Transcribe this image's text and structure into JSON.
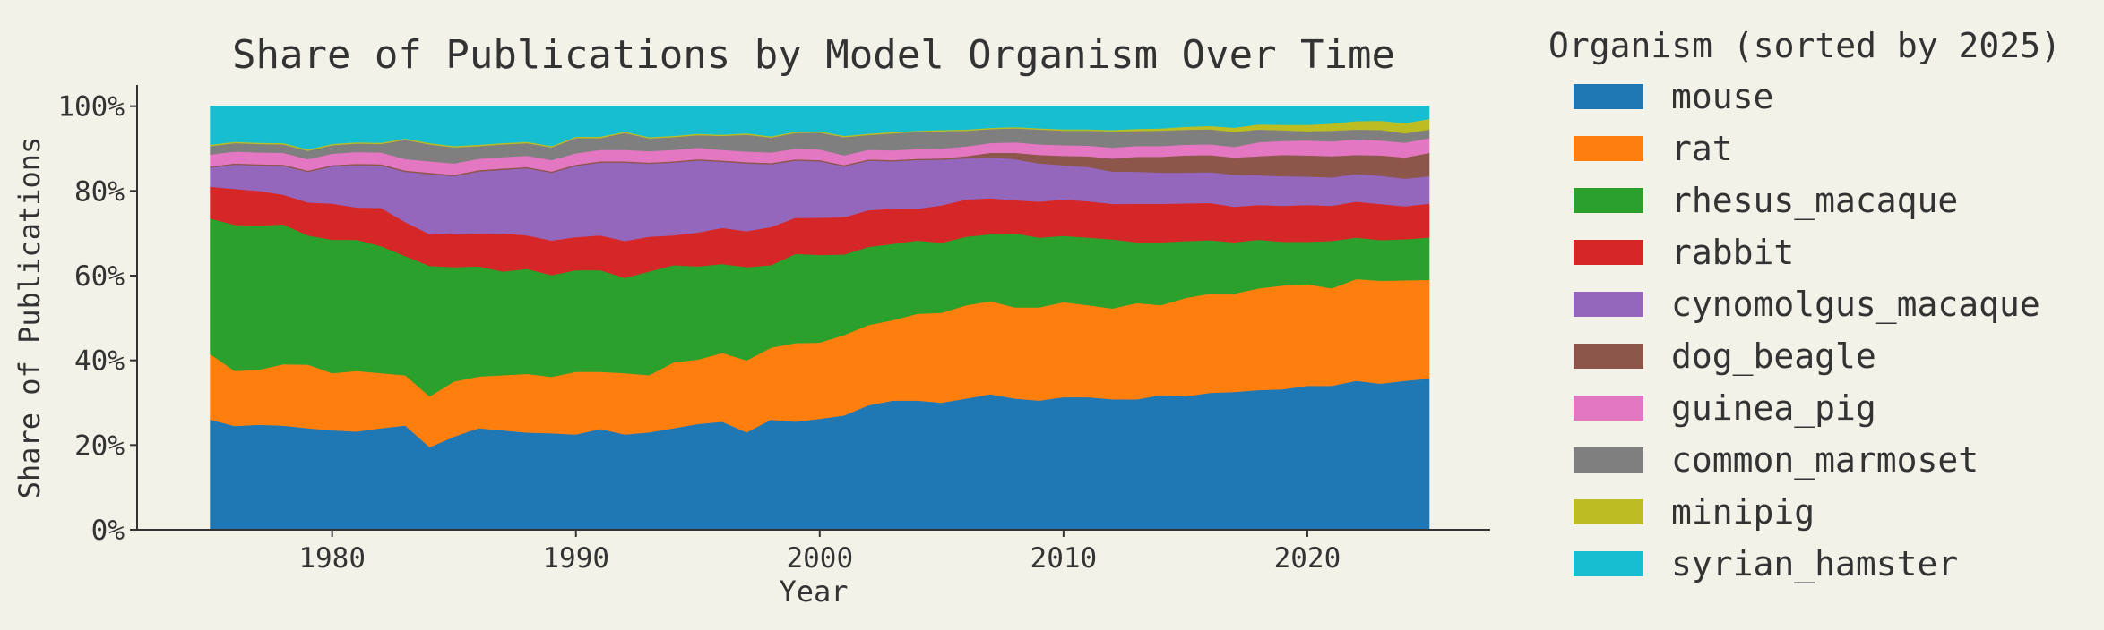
{
  "chart_data": {
    "type": "area",
    "stacked": true,
    "normalized": true,
    "title": "Share of Publications by Model Organism Over Time",
    "xlabel": "Year",
    "ylabel": "Share of Publications",
    "xlim": [
      1972,
      2027.5
    ],
    "ylim": [
      0,
      1.05
    ],
    "xticks": [
      1980,
      1990,
      2000,
      2010,
      2020
    ],
    "yticks": [
      0,
      0.2,
      0.4,
      0.6,
      0.8,
      1.0
    ],
    "ytick_labels": [
      "0%",
      "20%",
      "40%",
      "60%",
      "80%",
      "100%"
    ],
    "grid": false,
    "legend_title": "Organism (sorted by 2025)",
    "legend_position": "outside-right",
    "x": [
      1975,
      1976,
      1977,
      1978,
      1979,
      1980,
      1981,
      1982,
      1983,
      1984,
      1985,
      1986,
      1987,
      1988,
      1989,
      1990,
      1991,
      1992,
      1993,
      1994,
      1995,
      1996,
      1997,
      1998,
      1999,
      2000,
      2001,
      2002,
      2003,
      2004,
      2005,
      2006,
      2007,
      2008,
      2009,
      2010,
      2011,
      2012,
      2013,
      2014,
      2015,
      2016,
      2017,
      2018,
      2019,
      2020,
      2021,
      2022,
      2023,
      2024,
      2025
    ],
    "series": [
      {
        "name": "mouse",
        "color": "#1f77b4",
        "values": [
          0.26,
          0.245,
          0.248,
          0.246,
          0.24,
          0.235,
          0.232,
          0.24,
          0.245,
          0.195,
          0.22,
          0.24,
          0.235,
          0.232,
          0.228,
          0.225,
          0.238,
          0.225,
          0.23,
          0.24,
          0.25,
          0.255,
          0.23,
          0.26,
          0.255,
          0.262,
          0.27,
          0.295,
          0.305,
          0.305,
          0.3,
          0.31,
          0.32,
          0.31,
          0.305,
          0.31,
          0.31,
          0.302,
          0.305,
          0.315,
          0.312,
          0.32,
          0.322,
          0.33,
          0.332,
          0.34,
          0.34,
          0.352,
          0.345,
          0.352,
          0.357
        ]
      },
      {
        "name": "rat",
        "color": "#ff7f0e",
        "values": [
          0.155,
          0.13,
          0.13,
          0.145,
          0.15,
          0.135,
          0.143,
          0.13,
          0.118,
          0.12,
          0.13,
          0.122,
          0.13,
          0.14,
          0.133,
          0.148,
          0.135,
          0.145,
          0.135,
          0.155,
          0.152,
          0.162,
          0.17,
          0.17,
          0.185,
          0.18,
          0.19,
          0.19,
          0.19,
          0.205,
          0.212,
          0.22,
          0.22,
          0.215,
          0.22,
          0.222,
          0.215,
          0.21,
          0.225,
          0.21,
          0.23,
          0.232,
          0.23,
          0.24,
          0.245,
          0.24,
          0.23,
          0.24,
          0.243,
          0.237,
          0.233
        ]
      },
      {
        "name": "rhesus_macaque",
        "color": "#2ca02c",
        "values": [
          0.32,
          0.345,
          0.34,
          0.33,
          0.305,
          0.315,
          0.31,
          0.3,
          0.28,
          0.308,
          0.27,
          0.26,
          0.245,
          0.25,
          0.24,
          0.24,
          0.24,
          0.225,
          0.245,
          0.23,
          0.22,
          0.21,
          0.22,
          0.195,
          0.21,
          0.207,
          0.19,
          0.185,
          0.18,
          0.173,
          0.165,
          0.162,
          0.158,
          0.175,
          0.165,
          0.155,
          0.158,
          0.16,
          0.142,
          0.147,
          0.133,
          0.125,
          0.12,
          0.115,
          0.103,
          0.1,
          0.112,
          0.098,
          0.096,
          0.097,
          0.1
        ]
      },
      {
        "name": "rabbit",
        "color": "#d62728",
        "values": [
          0.075,
          0.085,
          0.082,
          0.07,
          0.078,
          0.085,
          0.076,
          0.09,
          0.08,
          0.075,
          0.08,
          0.077,
          0.09,
          0.08,
          0.082,
          0.078,
          0.082,
          0.087,
          0.082,
          0.07,
          0.08,
          0.085,
          0.085,
          0.09,
          0.085,
          0.088,
          0.088,
          0.087,
          0.083,
          0.075,
          0.088,
          0.088,
          0.085,
          0.078,
          0.085,
          0.085,
          0.085,
          0.082,
          0.09,
          0.09,
          0.088,
          0.087,
          0.083,
          0.082,
          0.085,
          0.087,
          0.083,
          0.085,
          0.085,
          0.078,
          0.08
        ]
      },
      {
        "name": "cynomolgus_macaque",
        "color": "#9467bd",
        "values": [
          0.045,
          0.057,
          0.06,
          0.068,
          0.072,
          0.088,
          0.1,
          0.1,
          0.118,
          0.142,
          0.135,
          0.147,
          0.15,
          0.16,
          0.16,
          0.168,
          0.172,
          0.185,
          0.172,
          0.172,
          0.17,
          0.156,
          0.16,
          0.148,
          0.135,
          0.133,
          0.12,
          0.117,
          0.112,
          0.115,
          0.108,
          0.097,
          0.097,
          0.097,
          0.09,
          0.08,
          0.08,
          0.075,
          0.075,
          0.073,
          0.072,
          0.072,
          0.075,
          0.07,
          0.07,
          0.067,
          0.067,
          0.065,
          0.067,
          0.065,
          0.065
        ]
      },
      {
        "name": "dog_beagle",
        "color": "#8c564b",
        "values": [
          0.003,
          0.003,
          0.003,
          0.003,
          0.003,
          0.003,
          0.003,
          0.003,
          0.003,
          0.003,
          0.003,
          0.003,
          0.003,
          0.003,
          0.003,
          0.003,
          0.003,
          0.003,
          0.003,
          0.003,
          0.003,
          0.003,
          0.003,
          0.003,
          0.003,
          0.003,
          0.003,
          0.003,
          0.003,
          0.003,
          0.003,
          0.005,
          0.01,
          0.015,
          0.02,
          0.022,
          0.025,
          0.03,
          0.035,
          0.037,
          0.04,
          0.04,
          0.04,
          0.045,
          0.05,
          0.05,
          0.05,
          0.045,
          0.048,
          0.05,
          0.055
        ]
      },
      {
        "name": "guinea_pig",
        "color": "#e377c2",
        "values": [
          0.028,
          0.028,
          0.028,
          0.028,
          0.027,
          0.027,
          0.028,
          0.028,
          0.027,
          0.027,
          0.027,
          0.027,
          0.027,
          0.027,
          0.027,
          0.027,
          0.027,
          0.027,
          0.027,
          0.027,
          0.027,
          0.025,
          0.025,
          0.025,
          0.025,
          0.025,
          0.023,
          0.023,
          0.023,
          0.023,
          0.023,
          0.023,
          0.023,
          0.025,
          0.025,
          0.025,
          0.025,
          0.025,
          0.025,
          0.025,
          0.025,
          0.025,
          0.025,
          0.033,
          0.033,
          0.035,
          0.035,
          0.037,
          0.035,
          0.035,
          0.035
        ]
      },
      {
        "name": "common_marmoset",
        "color": "#7f7f7f",
        "values": [
          0.02,
          0.02,
          0.02,
          0.02,
          0.02,
          0.02,
          0.02,
          0.02,
          0.045,
          0.04,
          0.038,
          0.03,
          0.03,
          0.03,
          0.03,
          0.036,
          0.028,
          0.04,
          0.03,
          0.03,
          0.03,
          0.033,
          0.04,
          0.035,
          0.037,
          0.04,
          0.043,
          0.035,
          0.04,
          0.04,
          0.041,
          0.037,
          0.033,
          0.033,
          0.035,
          0.034,
          0.035,
          0.038,
          0.035,
          0.036,
          0.035,
          0.035,
          0.035,
          0.03,
          0.025,
          0.022,
          0.025,
          0.023,
          0.025,
          0.022,
          0.02
        ]
      },
      {
        "name": "minipig",
        "color": "#bcbd22",
        "values": [
          0.003,
          0.003,
          0.003,
          0.003,
          0.003,
          0.003,
          0.003,
          0.003,
          0.003,
          0.003,
          0.003,
          0.003,
          0.003,
          0.003,
          0.003,
          0.003,
          0.003,
          0.003,
          0.003,
          0.003,
          0.003,
          0.003,
          0.003,
          0.003,
          0.003,
          0.003,
          0.003,
          0.003,
          0.003,
          0.003,
          0.003,
          0.003,
          0.003,
          0.003,
          0.003,
          0.003,
          0.003,
          0.003,
          0.005,
          0.005,
          0.007,
          0.008,
          0.01,
          0.012,
          0.013,
          0.015,
          0.017,
          0.02,
          0.022,
          0.024,
          0.025
        ]
      },
      {
        "name": "syrian_hamster",
        "color": "#17becf",
        "values": [
          0.091,
          0.084,
          0.086,
          0.087,
          0.102,
          0.089,
          0.085,
          0.086,
          0.076,
          0.087,
          0.094,
          0.091,
          0.087,
          0.085,
          0.094,
          0.072,
          0.072,
          0.06,
          0.073,
          0.07,
          0.065,
          0.067,
          0.064,
          0.071,
          0.06,
          0.059,
          0.07,
          0.065,
          0.061,
          0.058,
          0.056,
          0.055,
          0.051,
          0.049,
          0.052,
          0.054,
          0.054,
          0.055,
          0.053,
          0.052,
          0.048,
          0.046,
          0.05,
          0.043,
          0.044,
          0.044,
          0.041,
          0.035,
          0.034,
          0.04,
          0.03
        ]
      }
    ]
  }
}
